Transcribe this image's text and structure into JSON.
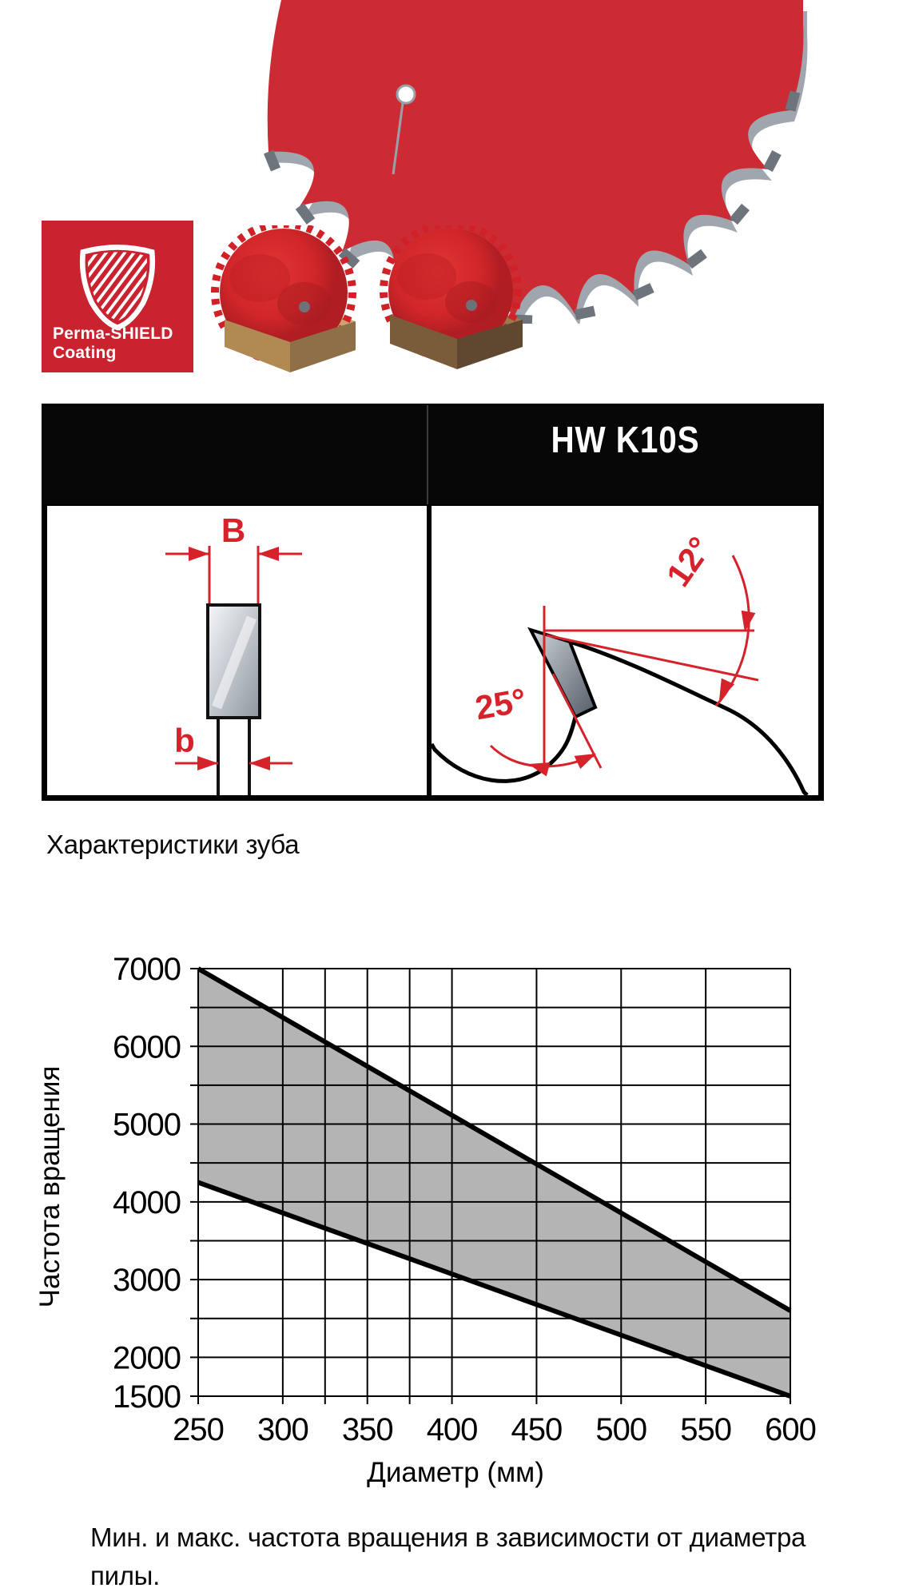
{
  "colors": {
    "brand_red": "#c8232f",
    "blade_red": "#cc2b33",
    "annotation_red": "#d6232b",
    "carbide_gray": "#6e747c",
    "band_gray": "#b4b4b4",
    "header_black": "#070707"
  },
  "badge": {
    "line1": "Perma-SHIELD",
    "line2": "Coating"
  },
  "table": {
    "model": "HW K10S"
  },
  "diagram_left": {
    "top_dim": "B",
    "bottom_dim": "b"
  },
  "diagram_right": {
    "top_angle": "12°",
    "side_angle": "25°"
  },
  "captions": {
    "tooth": "Характеристики зуба",
    "chart": "Мин. и макс. частота вращения в зависимости от диаметра пилы."
  },
  "chart_data": {
    "type": "area",
    "title": "",
    "xlabel": "Диаметр (мм)",
    "ylabel": "Частота вращения",
    "xlim": [
      250,
      600
    ],
    "ylim": [
      1500,
      7000
    ],
    "x_ticks": [
      250,
      300,
      350,
      400,
      450,
      500,
      550,
      600
    ],
    "x_minor_gridlines": [
      325,
      375
    ],
    "y_tick_labels": [
      7000,
      6000,
      5000,
      4000,
      3000,
      2000,
      1500
    ],
    "y_grid_step": 500,
    "grid": true,
    "legend_position": "none",
    "series": [
      {
        "name": "max",
        "points": [
          [
            250,
            7000
          ],
          [
            600,
            2600
          ]
        ]
      },
      {
        "name": "min",
        "points": [
          [
            250,
            4250
          ],
          [
            600,
            1500
          ]
        ]
      }
    ],
    "band_between_series": true
  }
}
